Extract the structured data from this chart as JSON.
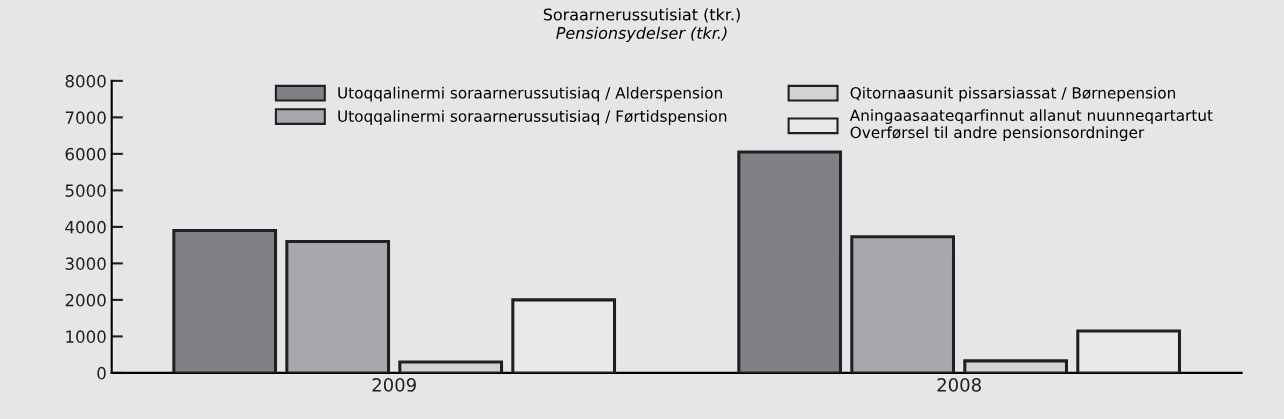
{
  "chart_data": {
    "type": "bar",
    "title": "Soraarnerussutisiat (tkr.)",
    "subtitle": "Pensionsydelser (tkr.)",
    "categories": [
      "2009",
      "2008"
    ],
    "series": [
      {
        "name": "Utoqqalinermi soraarnerussutisiaq / Alderspension",
        "color": "#808185",
        "values": [
          3900,
          6050
        ]
      },
      {
        "name": "Utoqqalinermi soraarnerussutisiaq / Førtidspension",
        "color": "#a7a8ac",
        "values": [
          3600,
          3730
        ]
      },
      {
        "name": "Qitornaasunit pissarsiassat / Børnepension",
        "color": "#d1d2d4",
        "values": [
          300,
          330
        ]
      },
      {
        "name": "Aningaasaateqarfinnut allanut nuunneqartartut\nOverførsel til andre pensionsordninger",
        "color": "#e9e9eb",
        "values": [
          2000,
          1150
        ]
      }
    ],
    "ylim": [
      0,
      8000
    ],
    "yticks": [
      0,
      1000,
      2000,
      3000,
      4000,
      5000,
      6000,
      7000,
      8000
    ],
    "grid": false,
    "legend": "top"
  }
}
